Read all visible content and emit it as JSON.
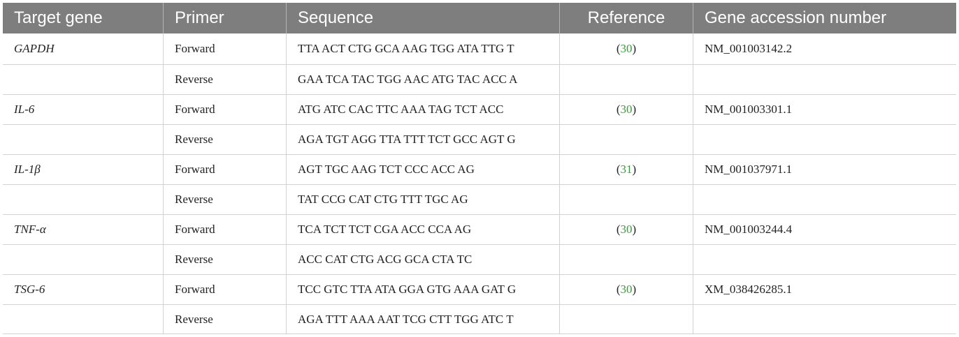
{
  "headers": {
    "target_gene": "Target gene",
    "primer": "Primer",
    "sequence": "Sequence",
    "reference": "Reference",
    "accession": "Gene accession number"
  },
  "rows": [
    {
      "gene": "GAPDH",
      "primer": "Forward",
      "sequence": "TTA ACT CTG GCA AAG TGG ATA TTG T",
      "ref_open": "(",
      "ref_num": "30",
      "ref_close": ")",
      "accession": "NM_001003142.2"
    },
    {
      "gene": "",
      "primer": "Reverse",
      "sequence": "GAA TCA TAC TGG AAC ATG TAC ACC A",
      "ref_open": "",
      "ref_num": "",
      "ref_close": "",
      "accession": ""
    },
    {
      "gene": "IL-6",
      "primer": "Forward",
      "sequence": "ATG ATC CAC TTC AAA TAG TCT ACC",
      "ref_open": "(",
      "ref_num": "30",
      "ref_close": ")",
      "accession": "NM_001003301.1"
    },
    {
      "gene": "",
      "primer": "Reverse",
      "sequence": "AGA TGT AGG TTA TTT TCT GCC AGT G",
      "ref_open": "",
      "ref_num": "",
      "ref_close": "",
      "accession": ""
    },
    {
      "gene": "IL-1β",
      "primer": "Forward",
      "sequence": "AGT TGC AAG TCT CCC ACC AG",
      "ref_open": "(",
      "ref_num": "31",
      "ref_close": ")",
      "accession": "NM_001037971.1"
    },
    {
      "gene": "",
      "primer": "Reverse",
      "sequence": "TAT CCG CAT CTG TTT TGC AG",
      "ref_open": "",
      "ref_num": "",
      "ref_close": "",
      "accession": ""
    },
    {
      "gene": "TNF-α",
      "primer": "Forward",
      "sequence": "TCA TCT TCT CGA ACC CCA AG",
      "ref_open": "(",
      "ref_num": "30",
      "ref_close": ")",
      "accession": "NM_001003244.4"
    },
    {
      "gene": "",
      "primer": "Reverse",
      "sequence": "ACC CAT CTG ACG GCA CTA TC",
      "ref_open": "",
      "ref_num": "",
      "ref_close": "",
      "accession": ""
    },
    {
      "gene": "TSG-6",
      "primer": "Forward",
      "sequence": "TCC GTC TTA ATA GGA GTG AAA GAT G",
      "ref_open": "(",
      "ref_num": "30",
      "ref_close": ")",
      "accession": "XM_038426285.1"
    },
    {
      "gene": "",
      "primer": "Reverse",
      "sequence": "AGA TTT AAA AAT TCG CTT TGG ATC T",
      "ref_open": "",
      "ref_num": "",
      "ref_close": "",
      "accession": ""
    }
  ],
  "colors": {
    "header_bg": "#7e7e7e",
    "ref_link": "#3a9a3a",
    "grid": "#d2d2d2"
  }
}
